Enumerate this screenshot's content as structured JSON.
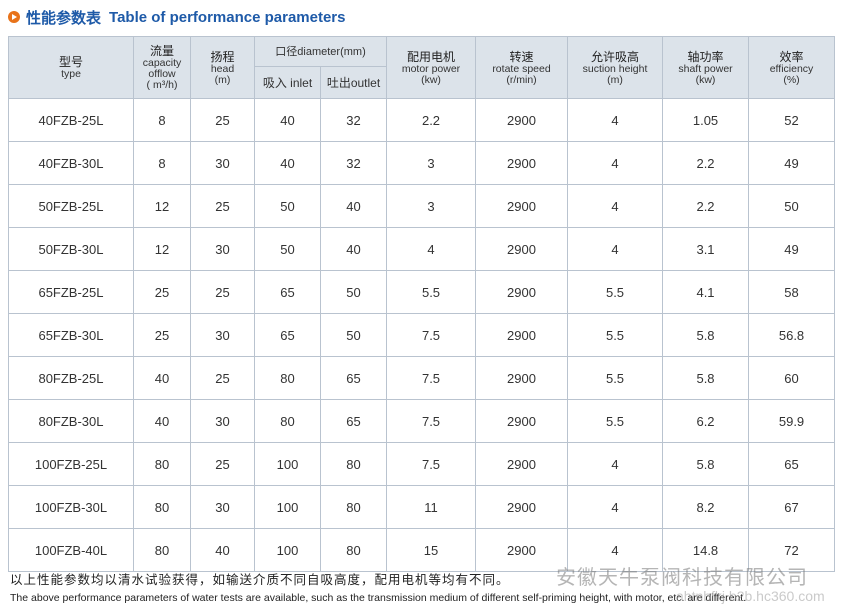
{
  "title": {
    "cn": "性能参数表",
    "en": "Table of performance parameters",
    "accent": "#1e5aa8",
    "bullet_color": "#e8731a"
  },
  "headers": {
    "type": {
      "cn": "型号",
      "en": "type"
    },
    "capacity": {
      "cn": "流量",
      "en1": "capacity",
      "en2": "offlow",
      "unit": "( m³/h)"
    },
    "head": {
      "cn": "扬程",
      "en": "head",
      "unit": "(m)"
    },
    "diameter": {
      "label": "口径diameter(mm)",
      "inlet": "吸入 inlet",
      "outlet": "吐出outlet"
    },
    "motor": {
      "cn": "配用电机",
      "en": "motor power",
      "unit": "(kw)"
    },
    "speed": {
      "cn": "转速",
      "en": "rotate speed",
      "unit": "(r/min)"
    },
    "suction": {
      "cn": "允许吸高",
      "en": "suction height",
      "unit": "(m)"
    },
    "shaft": {
      "cn": "轴功率",
      "en": "shaft power",
      "unit": "(kw)"
    },
    "efficiency": {
      "cn": "效率",
      "en": "efficiency",
      "unit": "(%)"
    }
  },
  "rows": [
    [
      "40FZB-25L",
      "8",
      "25",
      "40",
      "32",
      "2.2",
      "2900",
      "4",
      "1.05",
      "52"
    ],
    [
      "40FZB-30L",
      "8",
      "30",
      "40",
      "32",
      "3",
      "2900",
      "4",
      "2.2",
      "49"
    ],
    [
      "50FZB-25L",
      "12",
      "25",
      "50",
      "40",
      "3",
      "2900",
      "4",
      "2.2",
      "50"
    ],
    [
      "50FZB-30L",
      "12",
      "30",
      "50",
      "40",
      "4",
      "2900",
      "4",
      "3.1",
      "49"
    ],
    [
      "65FZB-25L",
      "25",
      "25",
      "65",
      "50",
      "5.5",
      "2900",
      "5.5",
      "4.1",
      "58"
    ],
    [
      "65FZB-30L",
      "25",
      "30",
      "65",
      "50",
      "7.5",
      "2900",
      "5.5",
      "5.8",
      "56.8"
    ],
    [
      "80FZB-25L",
      "40",
      "25",
      "80",
      "65",
      "7.5",
      "2900",
      "5.5",
      "5.8",
      "60"
    ],
    [
      "80FZB-30L",
      "40",
      "30",
      "80",
      "65",
      "7.5",
      "2900",
      "5.5",
      "6.2",
      "59.9"
    ],
    [
      "100FZB-25L",
      "80",
      "25",
      "100",
      "80",
      "7.5",
      "2900",
      "4",
      "5.8",
      "65"
    ],
    [
      "100FZB-30L",
      "80",
      "30",
      "100",
      "80",
      "11",
      "2900",
      "4",
      "8.2",
      "67"
    ],
    [
      "100FZB-40L",
      "80",
      "40",
      "100",
      "80",
      "15",
      "2900",
      "4",
      "14.8",
      "72"
    ]
  ],
  "notes": {
    "cn": "以上性能参数均以清水试验获得，如输送介质不同自吸高度，配用电机等均有不同。",
    "en": "The above performance parameters of water tests are available, such as the transmission medium of different self-priming height, with motor, etc. are different."
  },
  "watermark": {
    "cn": "安徽天牛泵阀科技有限公司",
    "en": "ahtnbfkj.b2b.hc360.com"
  }
}
